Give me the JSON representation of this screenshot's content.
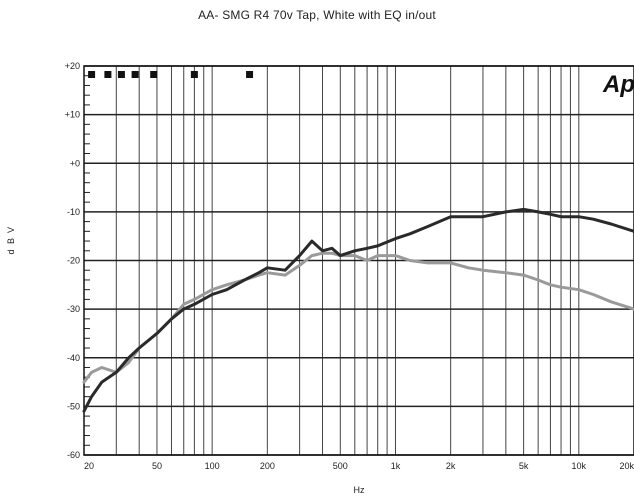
{
  "chart_data": {
    "type": "line",
    "title": "AA- SMG  R4 70v Tap, White with EQ in/out",
    "xlabel": "Hz",
    "ylabel": "dBV",
    "xscale": "log",
    "xlim": [
      20,
      20000
    ],
    "ylim": [
      -60,
      20
    ],
    "grid": true,
    "x_ticks": [
      {
        "v": 20,
        "label": "20"
      },
      {
        "v": 50,
        "label": "50"
      },
      {
        "v": 100,
        "label": "100"
      },
      {
        "v": 200,
        "label": "200"
      },
      {
        "v": 500,
        "label": "500"
      },
      {
        "v": 1000,
        "label": "1k"
      },
      {
        "v": 2000,
        "label": "2k"
      },
      {
        "v": 5000,
        "label": "5k"
      },
      {
        "v": 10000,
        "label": "10k"
      },
      {
        "v": 20000,
        "label": "20k"
      }
    ],
    "y_ticks": [
      {
        "v": 20,
        "label": "+20"
      },
      {
        "v": 10,
        "label": "+10"
      },
      {
        "v": 0,
        "label": "+0"
      },
      {
        "v": -10,
        "label": "-10"
      },
      {
        "v": -20,
        "label": "-20"
      },
      {
        "v": -30,
        "label": "-30"
      },
      {
        "v": -40,
        "label": "-40"
      },
      {
        "v": -50,
        "label": "-50"
      },
      {
        "v": -60,
        "label": "-60"
      }
    ],
    "markers_x": [
      22,
      27,
      32,
      38,
      48,
      80,
      160
    ],
    "series": [
      {
        "color": "#2a2a2a",
        "width": 3,
        "x": [
          20,
          22,
          25,
          30,
          35,
          40,
          50,
          60,
          70,
          80,
          100,
          120,
          150,
          180,
          200,
          250,
          300,
          350,
          400,
          450,
          500,
          600,
          700,
          800,
          1000,
          1200,
          1500,
          2000,
          2500,
          3000,
          4000,
          5000,
          6000,
          7000,
          8000,
          10000,
          12000,
          15000,
          20000
        ],
        "values": [
          -51,
          -48,
          -45,
          -43,
          -40,
          -38,
          -35,
          -32,
          -30,
          -29,
          -27,
          -26,
          -24,
          -22.5,
          -21.5,
          -22,
          -19,
          -16,
          -18,
          -17.5,
          -19,
          -18,
          -17.5,
          -17,
          -15.5,
          -14.5,
          -13,
          -11,
          -11,
          -11,
          -10,
          -9.5,
          -10,
          -10.5,
          -11,
          -11,
          -11.5,
          -12.5,
          -14
        ]
      },
      {
        "color": "#9a9a9a",
        "width": 3,
        "x": [
          20,
          22,
          25,
          30,
          35,
          40,
          50,
          60,
          70,
          80,
          100,
          120,
          150,
          180,
          200,
          250,
          300,
          350,
          400,
          450,
          500,
          600,
          700,
          800,
          1000,
          1200,
          1500,
          2000,
          2500,
          3000,
          4000,
          5000,
          6000,
          7000,
          8000,
          10000,
          12000,
          15000,
          20000
        ],
        "values": [
          -45,
          -43,
          -42,
          -43,
          -41,
          -38,
          -35,
          -32,
          -29,
          -28,
          -26,
          -25,
          -24,
          -23,
          -22.5,
          -23,
          -21,
          -19,
          -18.5,
          -18.5,
          -19,
          -19,
          -20,
          -19,
          -19,
          -20,
          -20.5,
          -20.5,
          -21.5,
          -22,
          -22.5,
          -23,
          -24,
          -25,
          -25.5,
          -26,
          -27,
          -28.5,
          -30
        ]
      }
    ]
  },
  "logo": {
    "text": "Ap"
  }
}
